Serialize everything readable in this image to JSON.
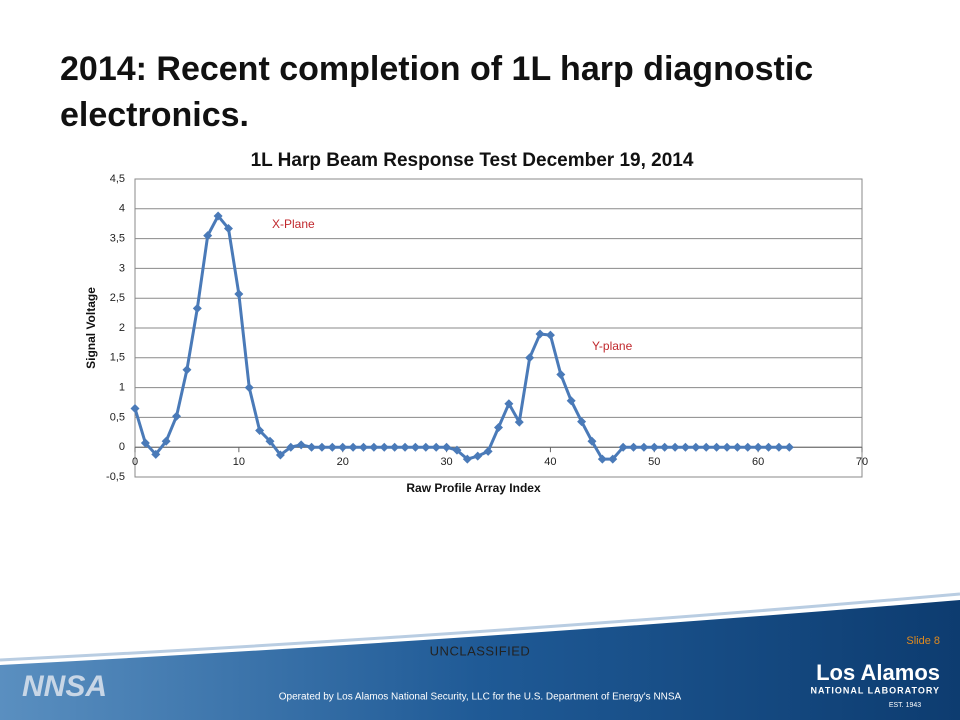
{
  "slide_title": "2014: Recent completion of 1L harp diagnostic electronics.",
  "chart_data": {
    "type": "line",
    "title": "1L Harp Beam Response Test December 19, 2014",
    "x_label": "Raw Profile Array Index",
    "y_label": "Signal Voltage",
    "x": [
      0,
      1,
      2,
      3,
      4,
      5,
      6,
      7,
      8,
      9,
      10,
      11,
      12,
      13,
      14,
      15,
      16,
      17,
      18,
      19,
      20,
      21,
      22,
      23,
      24,
      25,
      26,
      27,
      28,
      29,
      30,
      31,
      32,
      33,
      34,
      35,
      36,
      37,
      38,
      39,
      40,
      41,
      42,
      43,
      44,
      45,
      46,
      47,
      48,
      49,
      50,
      51,
      52,
      53,
      54,
      55,
      56,
      57,
      58,
      59,
      60,
      61,
      62,
      63
    ],
    "series": [
      {
        "color": "#4a7ab8",
        "values": [
          0.65,
          0.07,
          -0.12,
          0.1,
          0.52,
          1.3,
          2.33,
          3.55,
          3.88,
          3.67,
          2.57,
          1.0,
          0.28,
          0.1,
          -0.13,
          0.0,
          0.04,
          0.0,
          0,
          0,
          0,
          0,
          0,
          0,
          0,
          0,
          0,
          0,
          0,
          0,
          0,
          -0.05,
          -0.2,
          -0.15,
          -0.07,
          0.33,
          0.73,
          0.42,
          1.5,
          1.9,
          1.88,
          1.22,
          0.78,
          0.43,
          0.1,
          -0.2,
          -0.2,
          0,
          0,
          0,
          0,
          0,
          0,
          0,
          0,
          0,
          0,
          0,
          0,
          0,
          0,
          0,
          0,
          0
        ]
      }
    ],
    "xlim": [
      0,
      70
    ],
    "xticks": [
      0,
      10,
      20,
      30,
      40,
      50,
      60,
      70
    ],
    "ylim": [
      -0.5,
      4.5
    ],
    "yticks": [
      {
        "value": -0.5,
        "label": "-0,5"
      },
      0,
      {
        "value": 0.5,
        "label": "0,5"
      },
      1,
      {
        "value": 1.5,
        "label": "1,5"
      },
      2,
      {
        "value": 2.5,
        "label": "2,5"
      },
      3,
      {
        "value": 3.5,
        "label": "3,5"
      },
      4,
      {
        "value": 4.5,
        "label": "4,5"
      }
    ],
    "grid": true,
    "annotations": [
      "X-Plane",
      "Y-plane"
    ]
  },
  "footer": {
    "classification": "UNCLASSIFIED",
    "slide_number": "Slide 8",
    "operator": "Operated by Los Alamos National Security, LLC for the U.S. Department of Energy's NNSA",
    "lab_name": "Los Alamos",
    "lab_subtitle": "NATIONAL LABORATORY",
    "lab_est": "EST. 1943",
    "nnsa": "NNSA"
  }
}
